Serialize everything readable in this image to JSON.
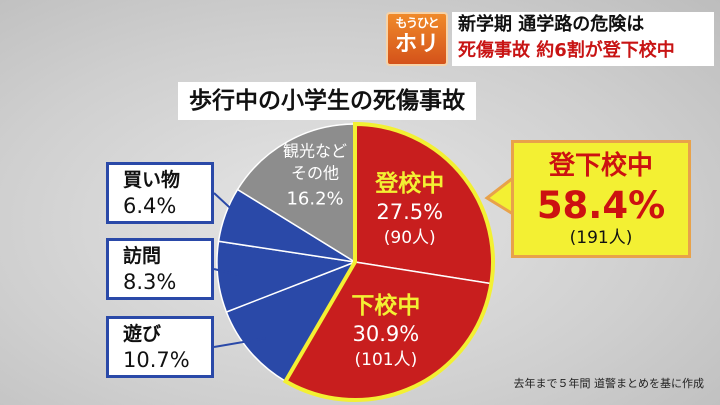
{
  "badge": {
    "top": "もうひと",
    "bottom": "ホリ"
  },
  "headline": {
    "line1": "新学期 通学路の危険は",
    "line2": "死傷事故 約6割が登下校中"
  },
  "chart_data": {
    "type": "pie",
    "title": "歩行中の小学生の死傷事故",
    "slices": [
      {
        "name": "登校中",
        "percent_label": "27.5%",
        "count_label": "(90人)",
        "value": 27.5,
        "color": "#c81e1e"
      },
      {
        "name": "下校中",
        "percent_label": "30.9%",
        "count_label": "(101人)",
        "value": 30.9,
        "color": "#c81e1e"
      },
      {
        "name": "遊び",
        "percent_label": "10.7%",
        "value": 10.7,
        "color": "#2a49a8"
      },
      {
        "name": "訪問",
        "percent_label": "8.3%",
        "value": 8.3,
        "color": "#2a49a8"
      },
      {
        "name": "買い物",
        "percent_label": "6.4%",
        "value": 6.4,
        "color": "#2a49a8"
      },
      {
        "name_line1": "観光など",
        "name_line2": "その他",
        "percent_label": "16.2%",
        "value": 16.2,
        "color": "#8d8d8d"
      }
    ],
    "callout": {
      "name": "登下校中",
      "percent_label": "58.4%",
      "count_label": "(191人)"
    },
    "source": "去年まで５年間 道警まとめを基に作成"
  }
}
